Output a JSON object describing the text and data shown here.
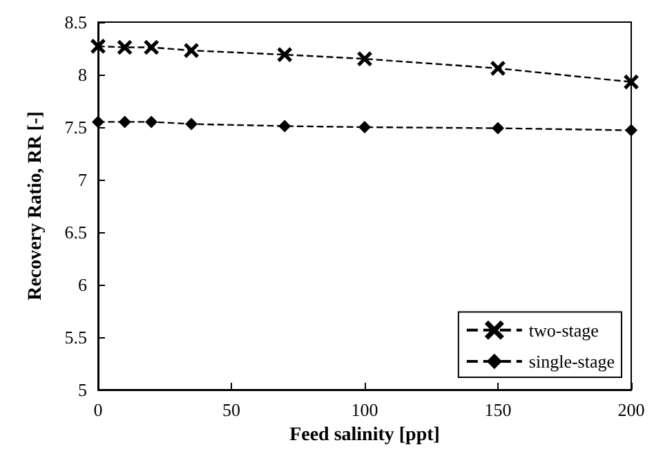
{
  "chart_data": {
    "type": "line",
    "xlabel": "Feed salinity [ppt]",
    "ylabel": "Recovery Ratio, RR [-]",
    "x": [
      0,
      10,
      20,
      35,
      70,
      100,
      150,
      200
    ],
    "series": [
      {
        "name": "two-stage",
        "color": "#000000",
        "marker": "cross",
        "values": [
          8.27,
          8.26,
          8.26,
          8.23,
          8.19,
          8.15,
          8.06,
          7.93
        ]
      },
      {
        "name": "single-stage",
        "color": "#000000",
        "marker": "diamond",
        "values": [
          7.55,
          7.55,
          7.55,
          7.53,
          7.51,
          7.5,
          7.49,
          7.47
        ]
      }
    ],
    "xlim": [
      0,
      200
    ],
    "xticks": [
      0,
      50,
      100,
      150,
      200
    ],
    "ylim": [
      5,
      8.5
    ],
    "yticks": [
      5,
      5.5,
      6,
      6.5,
      7,
      7.5,
      8,
      8.5
    ],
    "grid": false,
    "legend": "bottom right",
    "line_style": "dashed"
  }
}
